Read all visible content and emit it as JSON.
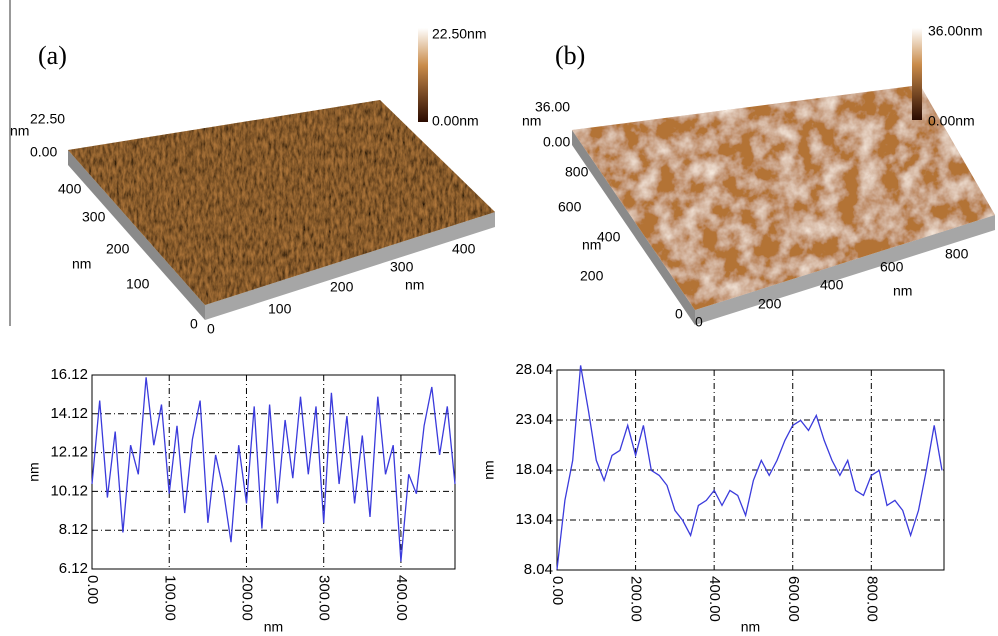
{
  "panels": [
    {
      "label": "(a)",
      "colorbar": [
        "22.50nm",
        "0.00nm"
      ],
      "z_ticks": [
        "22.50",
        "0.00"
      ],
      "z_unit": "nm",
      "y_ticks": [
        "400",
        "300",
        "200",
        "100",
        "0"
      ],
      "y_unit": "nm",
      "x_ticks": [
        "0",
        "100",
        "200",
        "300",
        "400"
      ],
      "x_unit": "nm"
    },
    {
      "label": "(b)",
      "colorbar": [
        "36.00nm",
        "0.00nm"
      ],
      "z_ticks": [
        "36.00",
        "0.00"
      ],
      "z_unit": "nm",
      "y_ticks": [
        "800",
        "600",
        "400",
        "200",
        "0"
      ],
      "y_unit": "nm",
      "x_ticks": [
        "0",
        "200",
        "400",
        "600",
        "800"
      ],
      "x_unit": "nm"
    }
  ],
  "chart_data": [
    {
      "type": "line",
      "xlabel": "nm",
      "ylabel": "nm",
      "color": "#3b3bdc",
      "grid": true,
      "xlim": [
        0,
        470
      ],
      "ylim": [
        6.12,
        16.12
      ],
      "xticks": [
        {
          "value": 0,
          "label": "0.00"
        },
        {
          "value": 100,
          "label": "100.00"
        },
        {
          "value": 200,
          "label": "200.00"
        },
        {
          "value": 300,
          "label": "300.00"
        },
        {
          "value": 400,
          "label": "400.00"
        }
      ],
      "yticks": [
        6.12,
        8.12,
        10.12,
        12.12,
        14.12,
        16.12
      ],
      "x": [
        0,
        10,
        20,
        30,
        40,
        50,
        60,
        70,
        80,
        90,
        100,
        110,
        120,
        130,
        140,
        150,
        160,
        170,
        180,
        190,
        200,
        210,
        220,
        230,
        240,
        250,
        260,
        270,
        280,
        290,
        300,
        310,
        320,
        330,
        340,
        350,
        360,
        370,
        380,
        390,
        400,
        410,
        420,
        430,
        440,
        450,
        460,
        470
      ],
      "values": [
        10.5,
        14.8,
        9.8,
        13.2,
        8.0,
        12.5,
        11.0,
        16.0,
        12.5,
        14.6,
        10.0,
        13.5,
        9.0,
        12.8,
        14.8,
        8.5,
        12.0,
        10.2,
        7.5,
        12.5,
        9.5,
        14.5,
        8.2,
        14.6,
        9.5,
        13.8,
        10.8,
        15.0,
        11.0,
        14.5,
        8.5,
        15.2,
        10.5,
        14.0,
        9.5,
        13.0,
        8.8,
        15.0,
        11.0,
        12.5,
        6.5,
        11.0,
        10.0,
        13.5,
        15.5,
        12.0,
        14.5,
        10.5
      ]
    },
    {
      "type": "line",
      "xlabel": "nm",
      "ylabel": "nm",
      "color": "#3b3bdc",
      "grid": true,
      "xlim": [
        0,
        985
      ],
      "ylim": [
        8.04,
        28.04
      ],
      "xticks": [
        {
          "value": 0,
          "label": "0.00"
        },
        {
          "value": 200,
          "label": "200.00"
        },
        {
          "value": 400,
          "label": "400.00"
        },
        {
          "value": 600,
          "label": "600.00"
        },
        {
          "value": 800,
          "label": "800.00"
        }
      ],
      "yticks": [
        8.04,
        13.04,
        18.04,
        23.04,
        28.04
      ],
      "x": [
        0,
        20,
        40,
        60,
        80,
        100,
        120,
        140,
        160,
        180,
        200,
        220,
        240,
        260,
        280,
        300,
        320,
        340,
        360,
        380,
        400,
        420,
        440,
        460,
        480,
        500,
        520,
        540,
        560,
        580,
        600,
        620,
        640,
        660,
        680,
        700,
        720,
        740,
        760,
        780,
        800,
        820,
        840,
        860,
        880,
        900,
        920,
        940,
        960,
        980
      ],
      "values": [
        8.1,
        15,
        19,
        28.5,
        24,
        19,
        17,
        19.5,
        20,
        22.5,
        19.5,
        22.5,
        18,
        17.5,
        16.5,
        14,
        13,
        11.5,
        14.5,
        15,
        16,
        14.5,
        16,
        15.5,
        13.5,
        17,
        19,
        17.5,
        19,
        21,
        22.5,
        23,
        22,
        23.5,
        21,
        19,
        17.5,
        19,
        16,
        15.5,
        17.5,
        18,
        14.5,
        15,
        14,
        11.5,
        14,
        18,
        22.5,
        18
      ]
    }
  ]
}
